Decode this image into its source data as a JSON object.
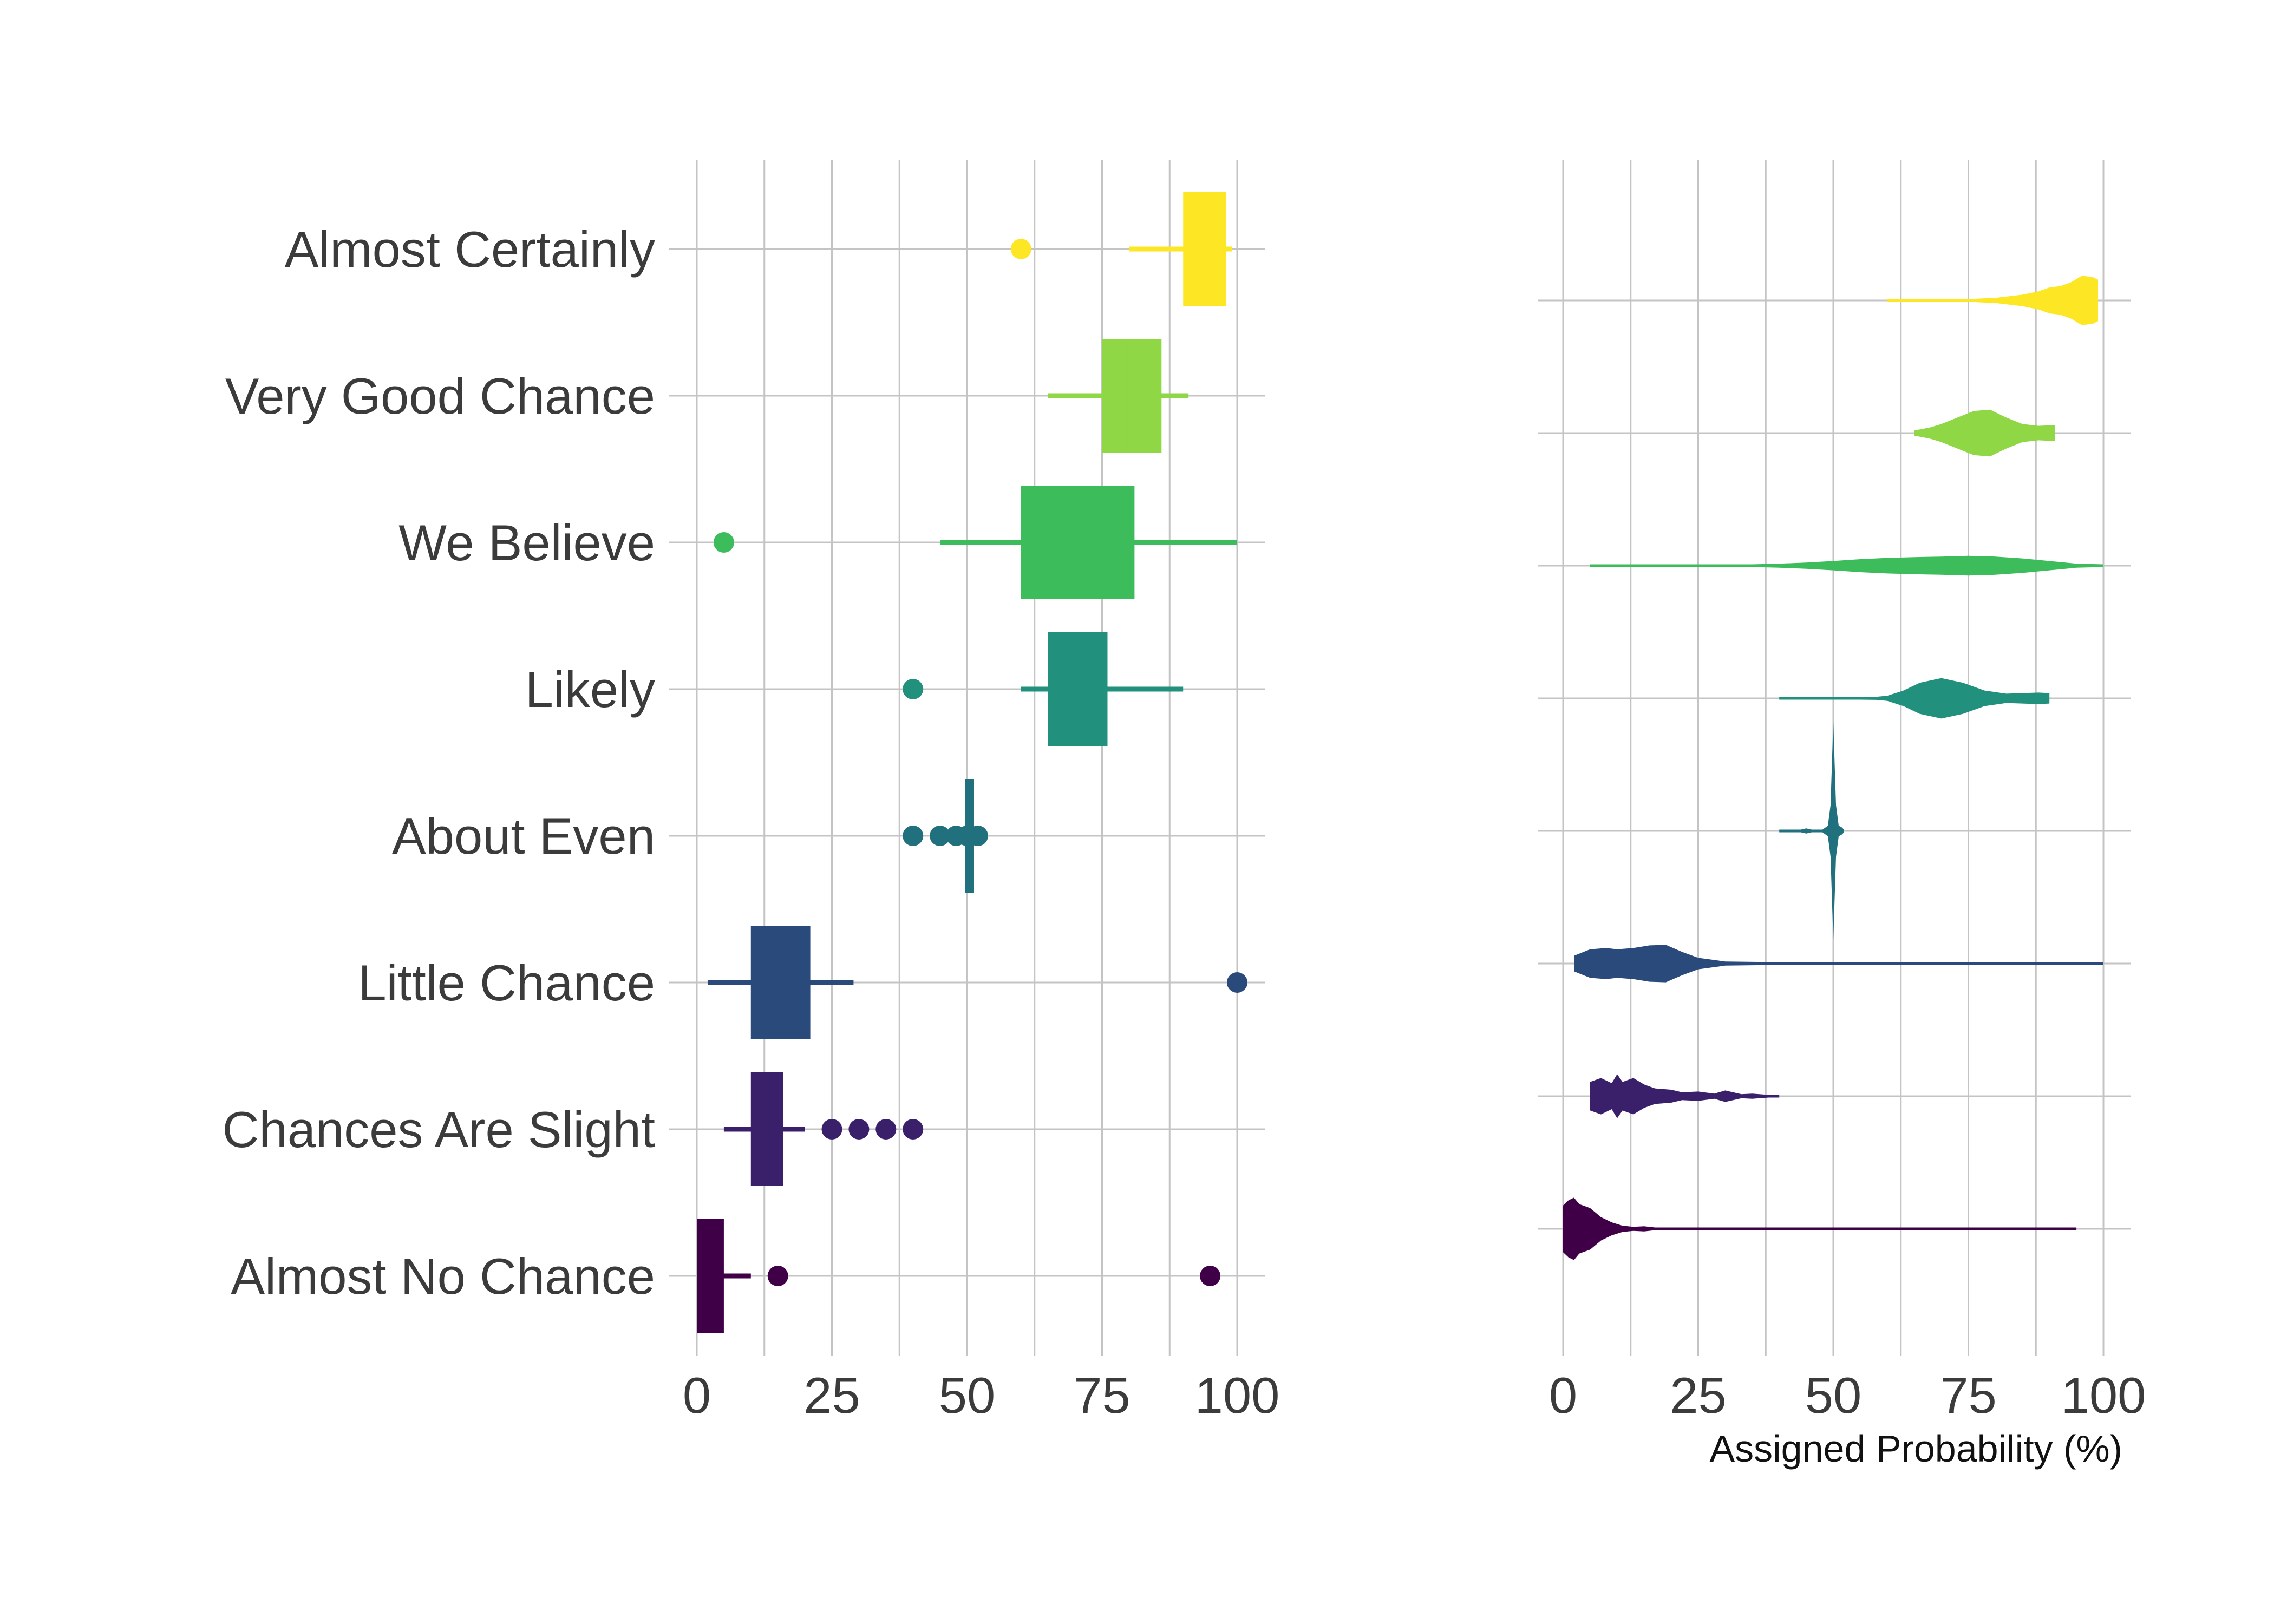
{
  "chart_data": [
    {
      "type": "box",
      "categories": [
        "Almost Certainly",
        "Very Good Chance",
        "We Believe",
        "Likely",
        "About Even",
        "Little Chance",
        "Chances Are Slight",
        "Almost No Chance"
      ],
      "xlim": [
        0,
        100
      ],
      "ticks": [
        0,
        25,
        50,
        75,
        100
      ],
      "tick_labels": [
        "0",
        "25",
        "50",
        "75",
        "100"
      ],
      "grid": true,
      "boxes": [
        {
          "category": "Almost Certainly",
          "whisker_low": 80,
          "q1": 90,
          "median": 95,
          "q3": 98,
          "whisker_high": 99,
          "outliers": [
            60
          ],
          "color": "#fde725"
        },
        {
          "category": "Very Good Chance",
          "whisker_low": 65,
          "q1": 75,
          "median": 80,
          "q3": 86,
          "whisker_high": 91,
          "outliers": [],
          "color": "#8fd744"
        },
        {
          "category": "We Believe",
          "whisker_low": 45,
          "q1": 60,
          "median": 75,
          "q3": 81,
          "whisker_high": 100,
          "outliers": [
            5
          ],
          "color": "#3dbc5b"
        },
        {
          "category": "Likely",
          "whisker_low": 60,
          "q1": 65,
          "median": 70,
          "q3": 76,
          "whisker_high": 90,
          "outliers": [
            40
          ],
          "color": "#21907c"
        },
        {
          "category": "About Even",
          "whisker_low": 50,
          "q1": 50,
          "median": 50,
          "q3": 51,
          "whisker_high": 51,
          "outliers": [
            40,
            45,
            48,
            50,
            52
          ],
          "color": "#21707d"
        },
        {
          "category": "Little Chance",
          "whisker_low": 2,
          "q1": 10,
          "median": 15,
          "q3": 21,
          "whisker_high": 29,
          "outliers": [
            100
          ],
          "color": "#2a4a7b"
        },
        {
          "category": "Chances Are Slight",
          "whisker_low": 5,
          "q1": 10,
          "median": 12,
          "q3": 16,
          "whisker_high": 20,
          "outliers": [
            25,
            30,
            35,
            40
          ],
          "color": "#3a1f6a"
        },
        {
          "category": "Almost No Chance",
          "whisker_low": 0,
          "q1": 0,
          "median": 2,
          "q3": 5,
          "whisker_high": 10,
          "outliers": [
            15,
            95
          ],
          "color": "#3f0047"
        }
      ]
    },
    {
      "type": "violin",
      "xlabel": "Assigned Probability (%)",
      "xlim": [
        0,
        100
      ],
      "ticks": [
        0,
        25,
        50,
        75,
        100
      ],
      "tick_labels": [
        "0",
        "25",
        "50",
        "75",
        "100"
      ],
      "grid": true,
      "violins": [
        {
          "category": "Almost Certainly",
          "color": "#fde725",
          "x": [
            60,
            65,
            70,
            75,
            80,
            85,
            88,
            90,
            92,
            94,
            96,
            98,
            99
          ],
          "density": [
            0.01,
            0.01,
            0.02,
            0.03,
            0.1,
            0.22,
            0.35,
            0.5,
            0.55,
            0.7,
            0.95,
            0.9,
            0.8
          ]
        },
        {
          "category": "Very Good Chance",
          "color": "#8fd744",
          "x": [
            65,
            68,
            70,
            73,
            76,
            79,
            82,
            85,
            88,
            90,
            91
          ],
          "density": [
            0.1,
            0.22,
            0.35,
            0.6,
            0.85,
            0.9,
            0.6,
            0.35,
            0.28,
            0.3,
            0.3
          ]
        },
        {
          "category": "We Believe",
          "color": "#3dbc5b",
          "x": [
            5,
            15,
            25,
            35,
            40,
            45,
            50,
            55,
            60,
            65,
            70,
            75,
            80,
            85,
            90,
            95,
            100
          ],
          "density": [
            0.005,
            0.01,
            0.02,
            0.04,
            0.08,
            0.12,
            0.18,
            0.25,
            0.3,
            0.33,
            0.35,
            0.38,
            0.35,
            0.28,
            0.18,
            0.08,
            0.02
          ]
        },
        {
          "category": "Likely",
          "color": "#21907c",
          "x": [
            40,
            45,
            50,
            55,
            58,
            60,
            63,
            66,
            70,
            74,
            78,
            82,
            85,
            88,
            90
          ],
          "density": [
            0.02,
            0.02,
            0.02,
            0.03,
            0.06,
            0.1,
            0.3,
            0.6,
            0.78,
            0.6,
            0.3,
            0.18,
            0.2,
            0.22,
            0.2
          ]
        },
        {
          "category": "About Even",
          "color": "#21707d",
          "x": [
            40,
            42,
            44,
            45,
            46,
            48,
            49,
            49.5,
            50,
            50.5,
            51,
            51.5,
            52
          ],
          "density": [
            0.02,
            0.05,
            0.03,
            0.1,
            0.03,
            0.03,
            0.2,
            1.0,
            4.2,
            1.0,
            0.2,
            0.15,
            0.05
          ]
        },
        {
          "category": "Little Chance",
          "color": "#2a4a7b",
          "x": [
            2,
            5,
            8,
            10,
            13,
            16,
            19,
            22,
            25,
            30,
            40,
            60,
            80,
            100
          ],
          "density": [
            0.3,
            0.55,
            0.6,
            0.55,
            0.6,
            0.7,
            0.72,
            0.45,
            0.22,
            0.08,
            0.03,
            0.02,
            0.02,
            0.02
          ]
        },
        {
          "category": "Chances Are Slight",
          "color": "#3a1f6a",
          "x": [
            5,
            7,
            9,
            10,
            11,
            13,
            15,
            17,
            20,
            22,
            25,
            28,
            30,
            33,
            35,
            38,
            40
          ],
          "density": [
            0.55,
            0.7,
            0.5,
            0.85,
            0.55,
            0.7,
            0.45,
            0.3,
            0.25,
            0.15,
            0.18,
            0.1,
            0.22,
            0.08,
            0.1,
            0.05,
            0.05
          ]
        },
        {
          "category": "Almost No Chance",
          "color": "#3f0047",
          "x": [
            0,
            1,
            2,
            3,
            5,
            7,
            9,
            11,
            13,
            15,
            17,
            20,
            30,
            50,
            80,
            95
          ],
          "density": [
            0.9,
            1.1,
            1.2,
            0.95,
            0.8,
            0.45,
            0.25,
            0.12,
            0.08,
            0.1,
            0.05,
            0.02,
            0.02,
            0.02,
            0.02,
            0.03
          ]
        }
      ]
    }
  ]
}
